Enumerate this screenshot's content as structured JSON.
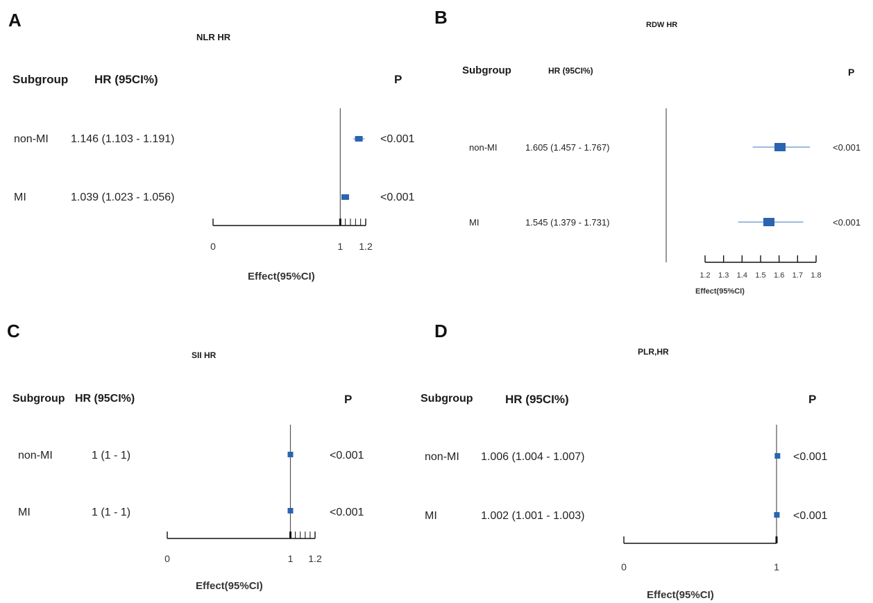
{
  "panels": [
    {
      "letter": "A",
      "title": "NLR HR",
      "header": {
        "subgroup": "Subgroup",
        "hr": "HR (95CI%)",
        "p": "P"
      },
      "xlabel": "Effect(95%CI)"
    },
    {
      "letter": "B",
      "title": "RDW HR",
      "header": {
        "subgroup": "Subgroup",
        "hr": "HR (95CI%)",
        "p": "P"
      },
      "xlabel": "Effect(95%CI)"
    },
    {
      "letter": "C",
      "title": "SII HR",
      "header": {
        "subgroup": "Subgroup",
        "hr": "HR (95CI%)",
        "p": "P"
      },
      "xlabel": "Effect(95%CI)"
    },
    {
      "letter": "D",
      "title": "PLR,HR",
      "header": {
        "subgroup": "Subgroup",
        "hr": "HR (95CI%)",
        "p": "P"
      },
      "xlabel": "Effect(95%CI)"
    }
  ],
  "chart_data": [
    {
      "type": "scatter",
      "title": "NLR HR",
      "xlabel": "Effect(95%CI)",
      "xlim": [
        0,
        1.2
      ],
      "ref_line": 1,
      "ticks": [
        0,
        1,
        1.2
      ],
      "tick_labels": [
        "0",
        "1",
        "1.2"
      ],
      "rows": [
        {
          "subgroup": "non-MI",
          "label": "1.146 (1.103 - 1.191)",
          "hr": 1.146,
          "low": 1.103,
          "high": 1.191,
          "p": "<0.001"
        },
        {
          "subgroup": "MI",
          "label": "1.039 (1.023 - 1.056)",
          "hr": 1.039,
          "low": 1.023,
          "high": 1.056,
          "p": "<0.001"
        }
      ]
    },
    {
      "type": "scatter",
      "title": "RDW HR",
      "xlabel": "Effect(95%CI)",
      "xlim": [
        1.2,
        1.8
      ],
      "ref_line": 1,
      "ticks": [
        1.2,
        1.3,
        1.4,
        1.5,
        1.6,
        1.7,
        1.8
      ],
      "tick_labels": [
        "1.2",
        "1.3",
        "1.4",
        "1.5",
        "1.6",
        "1.7",
        "1.8"
      ],
      "rows": [
        {
          "subgroup": "non-MI",
          "label": "1.605 (1.457 - 1.767)",
          "hr": 1.605,
          "low": 1.457,
          "high": 1.767,
          "p": "<0.001"
        },
        {
          "subgroup": "MI",
          "label": "1.545 (1.379 - 1.731)",
          "hr": 1.545,
          "low": 1.379,
          "high": 1.731,
          "p": "<0.001"
        }
      ]
    },
    {
      "type": "scatter",
      "title": "SII HR",
      "xlabel": "Effect(95%CI)",
      "xlim": [
        0,
        1.2
      ],
      "ref_line": 1,
      "ticks": [
        0,
        1,
        1.2
      ],
      "tick_labels": [
        "0",
        "1",
        "1.2"
      ],
      "rows": [
        {
          "subgroup": "non-MI",
          "label": "1 (1 - 1)",
          "hr": 1,
          "low": 1,
          "high": 1,
          "p": "<0.001"
        },
        {
          "subgroup": "MI",
          "label": "1 (1 - 1)",
          "hr": 1,
          "low": 1,
          "high": 1,
          "p": "<0.001"
        }
      ]
    },
    {
      "type": "scatter",
      "title": "PLR,HR",
      "xlabel": "Effect(95%CI)",
      "xlim": [
        0,
        1
      ],
      "ref_line": 1,
      "ticks": [
        0,
        1
      ],
      "tick_labels": [
        "0",
        "1"
      ],
      "rows": [
        {
          "subgroup": "non-MI",
          "label": "1.006 (1.004 - 1.007)",
          "hr": 1.006,
          "low": 1.004,
          "high": 1.007,
          "p": "<0.001"
        },
        {
          "subgroup": "MI",
          "label": "1.002 (1.001 - 1.003)",
          "hr": 1.002,
          "low": 1.001,
          "high": 1.003,
          "p": "<0.001"
        }
      ]
    }
  ],
  "colors": {
    "marker": "#2b64b0",
    "ci_line": "#7aa6d6",
    "axis": "#111111",
    "ref": "#555555"
  }
}
